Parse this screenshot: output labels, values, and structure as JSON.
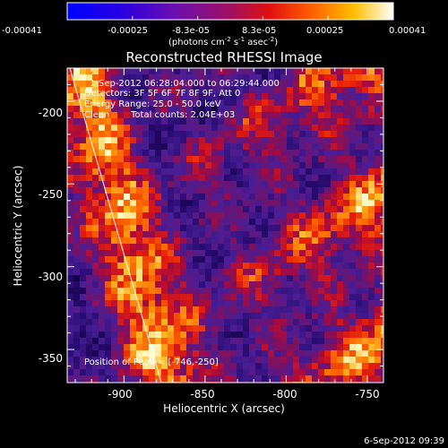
{
  "colorbar": {
    "ticks": [
      "-0.00041",
      "-0.00025",
      "-8.3e-05",
      "8.3e-05",
      "0.00025",
      "0.00041"
    ],
    "units_prefix": "(photons cm",
    "units_sup1": "-2",
    "units_mid1": " s",
    "units_sup2": "-1",
    "units_mid2": " asec",
    "units_sup3": "-2",
    "units_suffix": ")"
  },
  "plot": {
    "title": "Reconstructed RHESSI Image",
    "xlabel": "Heliocentric X (arcsec)",
    "ylabel": "Heliocentric Y (arcsec)",
    "x_ticks": [
      "-900",
      "-850",
      "-800",
      "-750"
    ],
    "y_ticks": [
      "-200",
      "-250",
      "-300",
      "-350"
    ],
    "xlim": [
      -935,
      -740
    ],
    "ylim": [
      -370,
      -180
    ]
  },
  "info": {
    "line1": "1-Sep-2012 06:28:04.000 to 06:29:44.000",
    "line2": "Detectors: 3F 5F 6F 7F 8F 9F, Att 0",
    "line3": "Energy Range: 25.0 - 50.0 keV",
    "line4_a": "Clean",
    "line4_b": "Total counts: 2.04E+03"
  },
  "peak": {
    "label": "Position of Peak = [-746,-250]",
    "x": -746,
    "y": -250
  },
  "timestamp": "6-Sep-2012 09:39",
  "colors": {
    "background": "#000000",
    "limb_line": "#ffffff"
  }
}
